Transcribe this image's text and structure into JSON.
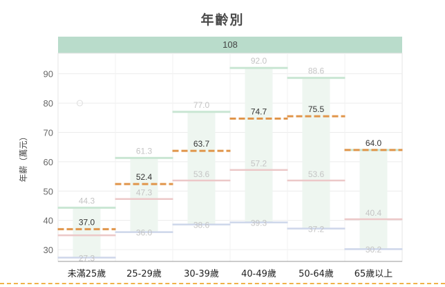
{
  "title": "年齡別",
  "panel_label": "108",
  "chart_data": {
    "type": "box",
    "title": "年齡別",
    "ylabel": "年薪（萬元）",
    "xlabel": "",
    "ylim": [
      26,
      97
    ],
    "yticks": [
      30,
      40,
      50,
      60,
      70,
      80,
      90
    ],
    "grid": true,
    "categories": [
      "未滿25歲",
      "25-29歲",
      "30-39歲",
      "40-49歲",
      "50-64歲",
      "65歲以上"
    ],
    "boxes": [
      {
        "low": 27.3,
        "q1": 34.9,
        "median": 37.0,
        "q3": 44.3,
        "mean": 37.0,
        "show_q1_label": false
      },
      {
        "low": 36.0,
        "q1": 47.3,
        "median": 52.4,
        "q3": 61.3,
        "mean": 52.4,
        "show_q1_label": true
      },
      {
        "low": 38.6,
        "q1": 53.6,
        "median": 63.7,
        "q3": 77.0,
        "mean": 63.7,
        "show_q1_label": true
      },
      {
        "low": 39.3,
        "q1": 57.2,
        "median": 74.7,
        "q3": 92.0,
        "mean": 74.7,
        "show_q1_label": true
      },
      {
        "low": 37.2,
        "q1": 53.6,
        "median": 75.5,
        "q3": 88.6,
        "mean": 75.5,
        "show_q1_label": true
      },
      {
        "low": 30.2,
        "q1": 40.4,
        "median": 64.0,
        "q3": 64.0,
        "mean": 64.0,
        "show_q1_label": true
      }
    ],
    "outliers": [
      {
        "category": 0,
        "value": 80
      }
    ],
    "colors": {
      "median": "#e0954a",
      "q3": "#c9e6d3",
      "q1": "#ecc8c8",
      "low": "#cdd6ea",
      "band": "#eef6f0",
      "label_faint": "#c4c4c4",
      "label_strong": "#333333",
      "grid": "#ececec",
      "header_bg": "#b9dccb"
    }
  }
}
